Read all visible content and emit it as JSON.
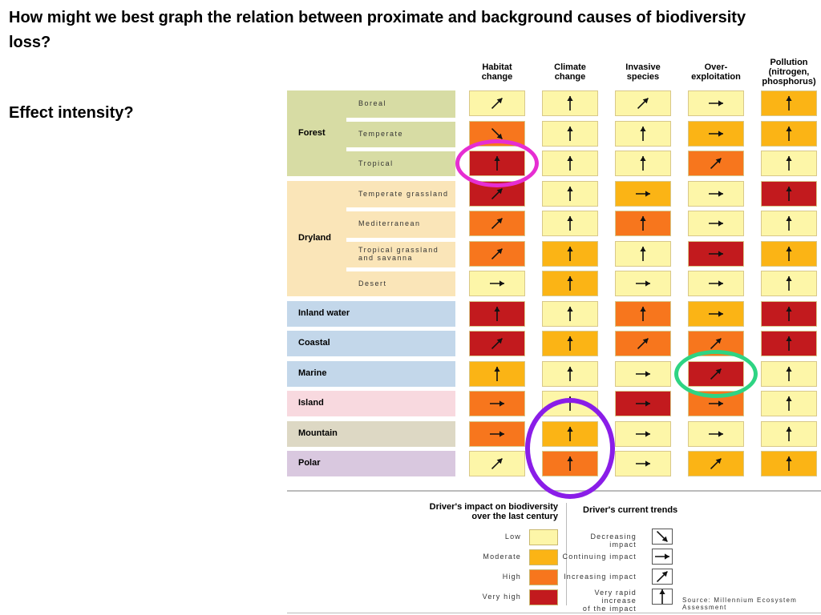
{
  "slide": {
    "title": "How might we best graph the relation between proximate and background causes of biodiversity loss?",
    "subtitle": "Effect intensity?"
  },
  "chart_data": {
    "type": "heatmap",
    "columns": [
      "Habitat\nchange",
      "Climate\nchange",
      "Invasive\nspecies",
      "Over-\nexploitation",
      "Pollution\n(nitrogen,\nphosphorus)"
    ],
    "ecosystems": [
      {
        "label": "Forest",
        "color": "#d7dca4",
        "rows": [
          {
            "label": "Boreal"
          },
          {
            "label": "Temperate"
          },
          {
            "label": "Tropical"
          }
        ]
      },
      {
        "label": "Dryland",
        "color": "#fae5b8",
        "rows": [
          {
            "label": "Temperate grassland"
          },
          {
            "label": "Mediterranean"
          },
          {
            "label": "Tropical grassland\nand savanna"
          },
          {
            "label": "Desert"
          }
        ]
      },
      {
        "label": "Inland water",
        "color": "#c3d7ea",
        "rows": [
          {
            "label": ""
          }
        ]
      },
      {
        "label": "Coastal",
        "color": "#c3d7ea",
        "rows": [
          {
            "label": ""
          }
        ]
      },
      {
        "label": "Marine",
        "color": "#c3d7ea",
        "rows": [
          {
            "label": ""
          }
        ]
      },
      {
        "label": "Island",
        "color": "#f8d9df",
        "rows": [
          {
            "label": ""
          }
        ]
      },
      {
        "label": "Mountain",
        "color": "#ddd8c4",
        "rows": [
          {
            "label": ""
          }
        ]
      },
      {
        "label": "Polar",
        "color": "#d9c8df",
        "rows": [
          {
            "label": ""
          }
        ]
      }
    ],
    "impact_scale": [
      "low",
      "moderate",
      "high",
      "very high"
    ],
    "cells": [
      [
        {
          "impact": "low",
          "trend": "increasing"
        },
        {
          "impact": "low",
          "trend": "very rapid"
        },
        {
          "impact": "low",
          "trend": "increasing"
        },
        {
          "impact": "low",
          "trend": "continuing"
        },
        {
          "impact": "moderate",
          "trend": "very rapid"
        }
      ],
      [
        {
          "impact": "high",
          "trend": "decreasing"
        },
        {
          "impact": "low",
          "trend": "very rapid"
        },
        {
          "impact": "low",
          "trend": "very rapid"
        },
        {
          "impact": "moderate",
          "trend": "continuing"
        },
        {
          "impact": "moderate",
          "trend": "very rapid"
        }
      ],
      [
        {
          "impact": "very high",
          "trend": "very rapid"
        },
        {
          "impact": "low",
          "trend": "very rapid"
        },
        {
          "impact": "low",
          "trend": "very rapid"
        },
        {
          "impact": "high",
          "trend": "increasing"
        },
        {
          "impact": "low",
          "trend": "very rapid"
        }
      ],
      [
        {
          "impact": "very high",
          "trend": "increasing"
        },
        {
          "impact": "low",
          "trend": "very rapid"
        },
        {
          "impact": "moderate",
          "trend": "continuing"
        },
        {
          "impact": "low",
          "trend": "continuing"
        },
        {
          "impact": "very high",
          "trend": "very rapid"
        }
      ],
      [
        {
          "impact": "high",
          "trend": "increasing"
        },
        {
          "impact": "low",
          "trend": "very rapid"
        },
        {
          "impact": "high",
          "trend": "very rapid"
        },
        {
          "impact": "low",
          "trend": "continuing"
        },
        {
          "impact": "low",
          "trend": "very rapid"
        }
      ],
      [
        {
          "impact": "high",
          "trend": "increasing"
        },
        {
          "impact": "moderate",
          "trend": "very rapid"
        },
        {
          "impact": "low",
          "trend": "very rapid"
        },
        {
          "impact": "very high",
          "trend": "continuing"
        },
        {
          "impact": "moderate",
          "trend": "very rapid"
        }
      ],
      [
        {
          "impact": "low",
          "trend": "continuing"
        },
        {
          "impact": "moderate",
          "trend": "very rapid"
        },
        {
          "impact": "low",
          "trend": "continuing"
        },
        {
          "impact": "low",
          "trend": "continuing"
        },
        {
          "impact": "low",
          "trend": "very rapid"
        }
      ],
      [
        {
          "impact": "very high",
          "trend": "very rapid"
        },
        {
          "impact": "low",
          "trend": "very rapid"
        },
        {
          "impact": "high",
          "trend": "very rapid"
        },
        {
          "impact": "moderate",
          "trend": "continuing"
        },
        {
          "impact": "very high",
          "trend": "very rapid"
        }
      ],
      [
        {
          "impact": "very high",
          "trend": "increasing"
        },
        {
          "impact": "moderate",
          "trend": "very rapid"
        },
        {
          "impact": "high",
          "trend": "increasing"
        },
        {
          "impact": "high",
          "trend": "increasing"
        },
        {
          "impact": "very high",
          "trend": "very rapid"
        }
      ],
      [
        {
          "impact": "moderate",
          "trend": "very rapid"
        },
        {
          "impact": "low",
          "trend": "very rapid"
        },
        {
          "impact": "low",
          "trend": "continuing"
        },
        {
          "impact": "very high",
          "trend": "increasing"
        },
        {
          "impact": "low",
          "trend": "very rapid"
        }
      ],
      [
        {
          "impact": "high",
          "trend": "continuing"
        },
        {
          "impact": "low",
          "trend": "very rapid"
        },
        {
          "impact": "very high",
          "trend": "continuing"
        },
        {
          "impact": "high",
          "trend": "continuing"
        },
        {
          "impact": "low",
          "trend": "very rapid"
        }
      ],
      [
        {
          "impact": "high",
          "trend": "continuing"
        },
        {
          "impact": "moderate",
          "trend": "very rapid"
        },
        {
          "impact": "low",
          "trend": "continuing"
        },
        {
          "impact": "low",
          "trend": "continuing"
        },
        {
          "impact": "low",
          "trend": "very rapid"
        }
      ],
      [
        {
          "impact": "low",
          "trend": "increasing"
        },
        {
          "impact": "high",
          "trend": "very rapid"
        },
        {
          "impact": "low",
          "trend": "continuing"
        },
        {
          "impact": "moderate",
          "trend": "increasing"
        },
        {
          "impact": "moderate",
          "trend": "very rapid"
        }
      ]
    ],
    "legend": {
      "impact_title": "Driver's impact on biodiversity\nover the last century",
      "impact_items": [
        {
          "label": "Low",
          "color": "#fdf6a8"
        },
        {
          "label": "Moderate",
          "color": "#fbb415"
        },
        {
          "label": "High",
          "color": "#f7761d"
        },
        {
          "label": "Very high",
          "color": "#c21a1e"
        }
      ],
      "trend_title": "Driver's current trends",
      "trend_items": [
        {
          "label": "Decreasing impact",
          "trend": "decreasing"
        },
        {
          "label": "Continuing impact",
          "trend": "continuing"
        },
        {
          "label": "Increasing impact",
          "trend": "increasing"
        },
        {
          "label": "Very rapid increase\nof the impact",
          "trend": "very rapid"
        }
      ]
    },
    "source": "Source: Millennium Ecosystem Assessment",
    "highlights": [
      {
        "row": 2,
        "col": 0,
        "color": "#e62ed2"
      },
      {
        "row": 9,
        "col": 3,
        "color": "#2ed483"
      },
      {
        "row": 11,
        "col": 1,
        "span_rows": 2,
        "color": "#8a1de8"
      }
    ]
  }
}
